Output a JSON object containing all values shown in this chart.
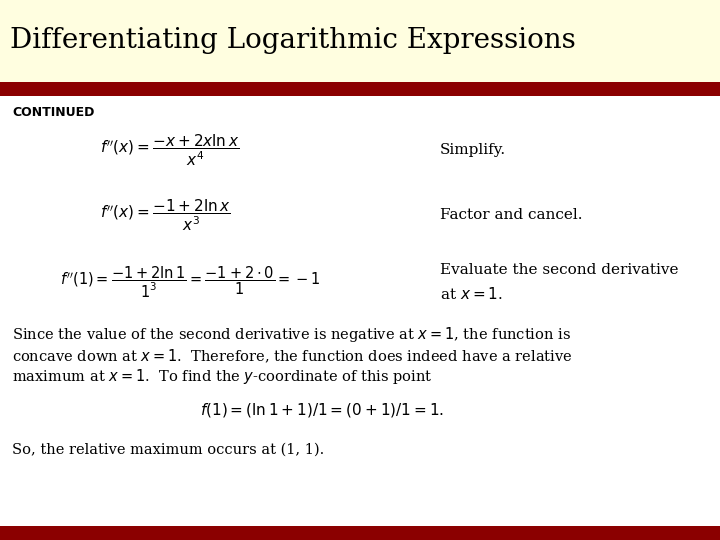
{
  "title": "Differentiating Logarithmic Expressions",
  "title_bg": "#fffee0",
  "title_color": "#000000",
  "title_fontsize": 20,
  "main_bg": "#ffffff",
  "bar_color": "#8B0000",
  "continued_label": "CONTINUED",
  "eq1": "$f''(x)=\\dfrac{-x+2x\\ln x}{x^4}$",
  "label1": "Simplify.",
  "eq2": "$f''(x)=\\dfrac{-1+2\\ln x}{x^3}$",
  "label2": "Factor and cancel.",
  "eq3": "$f''(1)=\\dfrac{-1+2\\ln 1}{1^3}=\\dfrac{-1+2\\cdot 0}{1}=-1$",
  "label3a": "Evaluate the second derivative",
  "label3b": "at $x = 1$.",
  "para1a": "Since the value of the second derivative is negative at $x = 1$, the function is",
  "para1b": "concave down at $x = 1$.  Therefore, the function does indeed have a relative",
  "para1c": "maximum at $x = 1$.  To find the $y$-coordinate of this point",
  "eq4": "$f(1)=(\\ln 1+1)/1=(0+1)/1=1.$",
  "para2": "So, the relative maximum occurs at (1, 1).",
  "text_color": "#000000"
}
